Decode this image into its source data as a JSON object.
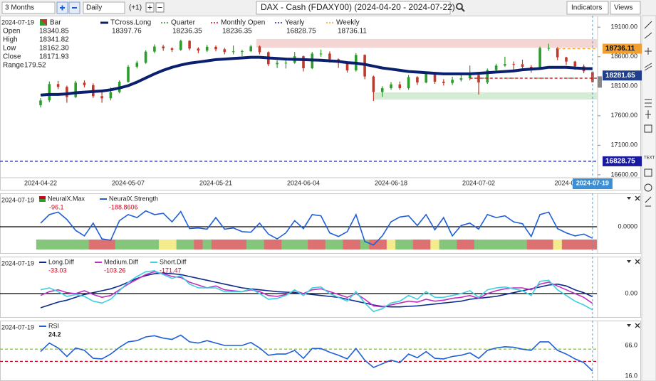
{
  "toolbar": {
    "period": "3 Months",
    "interval": "Daily",
    "offset": "(+1)",
    "title": "DAX - Cash (FDAXY00) (2024-04-20 - 2024-07-22)",
    "indicators": "Indicators",
    "views": "Views"
  },
  "chart_data": [
    {
      "type": "candlestick",
      "date": "2024-07-19",
      "categories": [
        "2024-04-22",
        null,
        null,
        null,
        null,
        null,
        null,
        null,
        null,
        null,
        "2024-05-07",
        null,
        null,
        null,
        null,
        null,
        null,
        null,
        null,
        null,
        "2024-05-21",
        null,
        null,
        null,
        null,
        null,
        null,
        null,
        null,
        null,
        "2024-06-04",
        null,
        null,
        null,
        null,
        null,
        null,
        null,
        null,
        null,
        "2024-06-18",
        null,
        null,
        null,
        null,
        null,
        null,
        null,
        null,
        null,
        "2024-07-02",
        null,
        null,
        null,
        null,
        null,
        null,
        null,
        null,
        null,
        "2024-07",
        null,
        null,
        "2024-07-19"
      ],
      "ylim": [
        16370,
        19320
      ],
      "yticks": [
        {
          "value": 19100,
          "label": "19100.00"
        },
        {
          "value": 18600,
          "label": "18600.00"
        },
        {
          "value": 18100,
          "label": "18100.00"
        },
        {
          "value": 17600,
          "label": "17600.00"
        },
        {
          "value": 17100,
          "label": "17100.00"
        },
        {
          "value": 16600,
          "label": "16600.00"
        }
      ],
      "info_names": [
        "Open",
        "High",
        "Low",
        "Close",
        "Range"
      ],
      "info_values": [
        "18340.85",
        "18341.82",
        "18162.30",
        "18171.93",
        "179.52"
      ],
      "price_marker": 18281.65,
      "series": [
        {
          "name": "Bar",
          "up_color": "#2a9d2a",
          "down_color": "#c0392b",
          "open": [
            17780,
            17860,
            18137,
            18088,
            17917,
            18161,
            18118,
            17932,
            17896,
            18001,
            18175,
            18430,
            18498,
            18686,
            18773,
            18742,
            18716,
            18869,
            18738,
            18704,
            18768,
            18726,
            18680,
            18691,
            18693,
            18774,
            18677,
            18473,
            18496,
            18498,
            18608,
            18405,
            18652,
            18653,
            18557,
            18494,
            18369,
            18630,
            18265,
            18002,
            18068,
            18131,
            18067,
            18254,
            18164,
            18325,
            18177,
            18155,
            18210,
            18235,
            18290,
            18164,
            18374,
            18450,
            18475,
            18473,
            18429,
            18407,
            18748,
            18748,
            18590,
            18518,
            18437,
            18340.85
          ],
          "high": [
            17900,
            18180,
            18190,
            18110,
            18190,
            18200,
            18150,
            18000,
            18080,
            18200,
            18460,
            18530,
            18710,
            18810,
            18800,
            18760,
            18890,
            18880,
            18760,
            18800,
            18790,
            18750,
            18790,
            18720,
            18800,
            18790,
            18690,
            18540,
            18560,
            18680,
            18620,
            18680,
            18720,
            18690,
            18570,
            18510,
            18660,
            18640,
            18280,
            18100,
            18170,
            18180,
            18290,
            18270,
            18350,
            18340,
            18220,
            18260,
            18320,
            18450,
            18320,
            18400,
            18480,
            18600,
            18520,
            18550,
            18460,
            18770,
            18820,
            18760,
            18600,
            18530,
            18470,
            18341.82
          ],
          "low": [
            17740,
            17830,
            18050,
            17820,
            17900,
            18080,
            17900,
            17820,
            17860,
            17980,
            18160,
            18400,
            18480,
            18660,
            18700,
            18680,
            18700,
            18710,
            18660,
            18680,
            18690,
            18640,
            18640,
            18610,
            18680,
            18640,
            18440,
            18410,
            18400,
            18480,
            18350,
            18390,
            18600,
            18500,
            18410,
            18330,
            18350,
            18220,
            17850,
            17920,
            18040,
            18040,
            18040,
            18120,
            18150,
            18140,
            18110,
            18120,
            18180,
            18200,
            17960,
            18140,
            18350,
            18430,
            18380,
            18390,
            18330,
            18390,
            18700,
            18540,
            18460,
            18380,
            18320,
            18162.3
          ],
          "close": [
            17860,
            18137,
            18088,
            17917,
            18161,
            18118,
            17932,
            17896,
            18001,
            18175,
            18430,
            18498,
            18686,
            18773,
            18742,
            18716,
            18869,
            18738,
            18704,
            18768,
            18726,
            18680,
            18691,
            18693,
            18774,
            18677,
            18473,
            18496,
            18498,
            18608,
            18405,
            18652,
            18653,
            18557,
            18494,
            18369,
            18630,
            18265,
            18002,
            18068,
            18131,
            18067,
            18254,
            18164,
            18325,
            18177,
            18155,
            18210,
            18235,
            18290,
            18164,
            18374,
            18450,
            18475,
            18473,
            18429,
            18407,
            18748,
            18748,
            18590,
            18518,
            18437,
            18354,
            18171.93
          ]
        },
        {
          "name": "TCross.Long",
          "color": "#0a1f6e",
          "values": [
            17950,
            17960,
            17960,
            17970,
            17990,
            18000,
            18010,
            18020,
            18040,
            18070,
            18110,
            18170,
            18240,
            18310,
            18370,
            18420,
            18460,
            18490,
            18510,
            18530,
            18550,
            18560,
            18570,
            18580,
            18590,
            18590,
            18580,
            18570,
            18560,
            18555,
            18550,
            18545,
            18540,
            18530,
            18520,
            18500,
            18490,
            18470,
            18440,
            18410,
            18390,
            18370,
            18350,
            18340,
            18330,
            18320,
            18310,
            18310,
            18310,
            18310,
            18320,
            18330,
            18340,
            18350,
            18360,
            18380,
            18390,
            18400,
            18420,
            18420,
            18420,
            18410,
            18400,
            18397.76
          ]
        },
        {
          "name": "Quarter",
          "color": "#2e8b2e",
          "level": 18236.35
        },
        {
          "name": "Monthly Open",
          "color": "#d0021b",
          "level": 18236.35
        },
        {
          "name": "Yearly",
          "color": "#1a1aa0",
          "level": 16828.75
        },
        {
          "name": "Weekly",
          "color": "#f0a030",
          "level": 18736.11
        }
      ]
    },
    {
      "type": "line",
      "date": "2024-07-19",
      "ylim": [
        -350,
        350
      ],
      "yticks": [
        {
          "value": 0,
          "label": "0.0000"
        }
      ],
      "series": [
        {
          "name": "NeuralX.Max",
          "value": -96.1,
          "color": "#d0021b",
          "colors": [
            "#86c67c",
            "#86c67c",
            "#86c67c",
            "#86c67c",
            "#86c67c",
            "#86c67c",
            "#dd7070",
            "#dd7070",
            "#dd7070",
            "#86c67c",
            "#86c67c",
            "#86c67c",
            "#86c67c",
            "#86c67c",
            "#f3eb8c",
            "#f3eb8c",
            "#86c67c",
            "#86c67c",
            "#dd7070",
            "#86c67c",
            "#dd7070",
            "#dd7070",
            "#dd7070",
            "#dd7070",
            "#86c67c",
            "#86c67c",
            "#dd7070",
            "#dd7070",
            "#86c67c",
            "#86c67c",
            "#86c67c",
            "#dd7070",
            "#dd7070",
            "#86c67c",
            "#86c67c",
            "#dd7070",
            "#dd7070",
            "#86c67c",
            "#dd7070",
            "#dd7070",
            "#f3eb8c",
            "#86c67c",
            "#86c67c",
            "#dd7070",
            "#dd7070",
            "#f3eb8c",
            "#86c67c",
            "#86c67c",
            "#dd7070",
            "#dd7070",
            "#86c67c",
            "#86c67c",
            "#86c67c",
            "#86c67c",
            "#86c67c",
            "#86c67c",
            "#dd7070",
            "#dd7070",
            "#dd7070",
            "#f3eb8c",
            "#dd7070",
            "#dd7070",
            "#dd7070",
            "#dd7070"
          ]
        },
        {
          "name": "NeuralX.Strength",
          "color": "#1f5fd6",
          "values": [
            60,
            200,
            240,
            120,
            -60,
            -150,
            60,
            -200,
            -220,
            100,
            200,
            150,
            260,
            200,
            220,
            80,
            250,
            -30,
            -20,
            -40,
            150,
            -40,
            -20,
            -80,
            -90,
            60,
            -120,
            -200,
            -100,
            100,
            -30,
            200,
            180,
            -100,
            -160,
            -80,
            200,
            -240,
            -300,
            -150,
            80,
            160,
            180,
            20,
            200,
            -50,
            150,
            -150,
            20,
            60,
            -40,
            200,
            150,
            180,
            80,
            50,
            -160,
            200,
            240,
            -30,
            -100,
            -150,
            -120,
            -188.8606
          ]
        }
      ]
    },
    {
      "type": "line",
      "date": "2024-07-19",
      "ylim": [
        -300,
        300
      ],
      "yticks": [
        {
          "value": 0,
          "label": "0.00"
        }
      ],
      "series": [
        {
          "name": "Long.Diff",
          "color": "#0b2a8a",
          "values": [
            -150,
            -120,
            -90,
            -70,
            -40,
            -10,
            10,
            30,
            50,
            80,
            120,
            160,
            190,
            210,
            215,
            210,
            200,
            180,
            160,
            140,
            120,
            100,
            80,
            60,
            50,
            40,
            30,
            20,
            15,
            10,
            0,
            -10,
            -20,
            -30,
            -40,
            -60,
            -80,
            -100,
            -120,
            -135,
            -140,
            -140,
            -135,
            -130,
            -120,
            -110,
            -100,
            -90,
            -80,
            -60,
            -50,
            -40,
            -30,
            -10,
            10,
            30,
            50,
            70,
            90,
            100,
            80,
            40,
            10,
            -33.03
          ]
        },
        {
          "name": "Medium.Diff",
          "color": "#c030c0",
          "values": [
            -20,
            20,
            40,
            10,
            0,
            30,
            -10,
            -40,
            -20,
            40,
            100,
            150,
            200,
            230,
            210,
            180,
            170,
            120,
            90,
            60,
            80,
            40,
            30,
            20,
            40,
            20,
            -20,
            -30,
            -10,
            30,
            0,
            40,
            50,
            20,
            -10,
            -40,
            0,
            -60,
            -130,
            -140,
            -120,
            -100,
            -80,
            -90,
            -60,
            -80,
            -70,
            -50,
            -40,
            -20,
            -50,
            0,
            30,
            50,
            60,
            60,
            40,
            100,
            120,
            80,
            40,
            0,
            -40,
            -103.26
          ]
        },
        {
          "name": "Short.Diff",
          "color": "#40cfe0",
          "values": [
            40,
            60,
            20,
            -30,
            -10,
            -30,
            -80,
            -100,
            -60,
            30,
            120,
            180,
            230,
            240,
            200,
            160,
            190,
            100,
            60,
            60,
            60,
            20,
            20,
            20,
            50,
            0,
            -60,
            -50,
            -20,
            40,
            -20,
            60,
            70,
            0,
            -40,
            -80,
            20,
            -100,
            -190,
            -160,
            -100,
            -80,
            -20,
            -60,
            20,
            -40,
            -40,
            -20,
            0,
            30,
            -40,
            40,
            60,
            70,
            50,
            30,
            -20,
            130,
            140,
            40,
            -20,
            -80,
            -120,
            -171.47
          ]
        }
      ]
    },
    {
      "type": "line",
      "date": "2024-07-19",
      "ylim": [
        9,
        94
      ],
      "yticks": [
        {
          "value": 66,
          "label": "66.0"
        },
        {
          "value": 16,
          "label": "16.0"
        }
      ],
      "levels": [
        {
          "value": 60,
          "color": "#7ed321"
        },
        {
          "value": 40,
          "color": "#d0021b"
        }
      ],
      "series": [
        {
          "name": "RSI",
          "color": "#1f5fd6",
          "values": [
            56,
            70,
            62,
            48,
            62,
            58,
            45,
            44,
            52,
            63,
            72,
            74,
            80,
            82,
            78,
            76,
            83,
            72,
            70,
            74,
            70,
            66,
            66,
            66,
            71,
            62,
            50,
            52,
            52,
            58,
            45,
            61,
            61,
            55,
            50,
            44,
            61,
            42,
            30,
            36,
            42,
            38,
            52,
            46,
            56,
            45,
            44,
            48,
            50,
            54,
            45,
            58,
            62,
            64,
            63,
            60,
            58,
            72,
            72,
            58,
            52,
            44,
            38,
            24.2
          ]
        }
      ]
    }
  ]
}
